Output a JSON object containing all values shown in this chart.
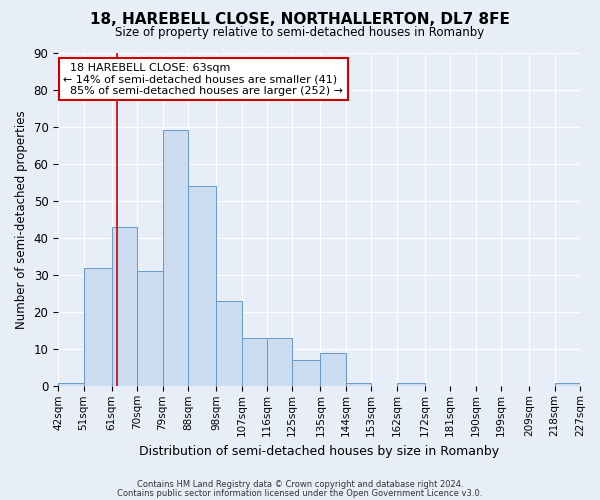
{
  "title": "18, HAREBELL CLOSE, NORTHALLERTON, DL7 8FE",
  "subtitle": "Size of property relative to semi-detached houses in Romanby",
  "xlabel": "Distribution of semi-detached houses by size in Romanby",
  "ylabel": "Number of semi-detached properties",
  "bin_labels": [
    "42sqm",
    "51sqm",
    "61sqm",
    "70sqm",
    "79sqm",
    "88sqm",
    "98sqm",
    "107sqm",
    "116sqm",
    "125sqm",
    "135sqm",
    "144sqm",
    "153sqm",
    "162sqm",
    "172sqm",
    "181sqm",
    "190sqm",
    "199sqm",
    "209sqm",
    "218sqm",
    "227sqm"
  ],
  "bin_edges": [
    42,
    51,
    61,
    70,
    79,
    88,
    98,
    107,
    116,
    125,
    135,
    144,
    153,
    162,
    172,
    181,
    190,
    199,
    209,
    218,
    227
  ],
  "values": [
    1,
    32,
    43,
    31,
    69,
    54,
    23,
    13,
    13,
    7,
    9,
    1,
    0,
    1,
    0,
    0,
    0,
    0,
    0,
    1
  ],
  "property_size": 63,
  "property_label": "18 HAREBELL CLOSE: 63sqm",
  "pct_smaller": 14,
  "pct_larger": 85,
  "count_smaller": 41,
  "count_larger": 252,
  "bar_fill": "#ccdcf0",
  "bar_edge": "#6699cc",
  "vline_color": "#cc0000",
  "box_edge_color": "#cc0000",
  "background_color": "#e8eef8",
  "grid_color": "#ffffff",
  "ylim": [
    0,
    90
  ],
  "yticks": [
    0,
    10,
    20,
    30,
    40,
    50,
    60,
    70,
    80,
    90
  ],
  "footnote1": "Contains HM Land Registry data © Crown copyright and database right 2024.",
  "footnote2": "Contains public sector information licensed under the Open Government Licence v3.0."
}
